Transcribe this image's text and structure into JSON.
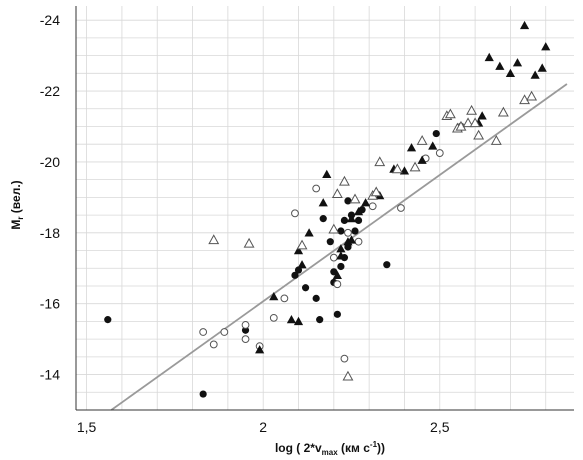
{
  "chart_data": {
    "type": "scatter",
    "title": "",
    "xlabel": "log ( 2*v",
    "xlabel_sub": "max",
    "xlabel_suffix": " (км с",
    "xlabel_sup": "-1",
    "xlabel_end": "))",
    "ylabel": "M",
    "ylabel_sub": "r",
    "ylabel_suffix": " (вел.)",
    "xlim": [
      1.47,
      2.88
    ],
    "ylim": [
      -13.0,
      -24.4
    ],
    "y_inverted": true,
    "grid": true,
    "x_ticks": [
      1.5,
      2,
      2.5
    ],
    "x_tick_labels": [
      "1,5",
      "2",
      "2,5"
    ],
    "y_ticks": [
      -14,
      -16,
      -18,
      -20,
      -22,
      -24
    ],
    "y_tick_labels": [
      "-14",
      "-16",
      "-18",
      "-20",
      "-22",
      "-24"
    ],
    "colors": {
      "marker": "#111111",
      "fit_line": "#9a9a9a",
      "grid": "#d8d8d8"
    },
    "fit_line": {
      "x": [
        1.57,
        2.86
      ],
      "y": [
        -13.0,
        -22.2
      ]
    },
    "series": [
      {
        "marker": "filled-circle",
        "points": [
          [
            1.56,
            -15.55
          ],
          [
            1.83,
            -13.45
          ],
          [
            1.95,
            -15.25
          ],
          [
            2.09,
            -16.8
          ],
          [
            2.1,
            -16.95
          ],
          [
            2.12,
            -16.45
          ],
          [
            2.15,
            -16.15
          ],
          [
            2.16,
            -15.55
          ],
          [
            2.17,
            -18.4
          ],
          [
            2.19,
            -17.75
          ],
          [
            2.2,
            -16.6
          ],
          [
            2.2,
            -16.9
          ],
          [
            2.21,
            -15.7
          ],
          [
            2.22,
            -17.05
          ],
          [
            2.22,
            -18.05
          ],
          [
            2.23,
            -18.35
          ],
          [
            2.23,
            -17.3
          ],
          [
            2.24,
            -17.6
          ],
          [
            2.24,
            -18.9
          ],
          [
            2.25,
            -18.5
          ],
          [
            2.26,
            -18.05
          ],
          [
            2.27,
            -18.35
          ],
          [
            2.28,
            -18.65
          ],
          [
            2.35,
            -17.1
          ],
          [
            2.49,
            -20.8
          ]
        ]
      },
      {
        "marker": "open-circle",
        "points": [
          [
            1.83,
            -15.2
          ],
          [
            1.86,
            -14.85
          ],
          [
            1.89,
            -15.2
          ],
          [
            1.95,
            -15.4
          ],
          [
            1.95,
            -15.0
          ],
          [
            1.99,
            -14.8
          ],
          [
            2.03,
            -15.6
          ],
          [
            2.06,
            -16.15
          ],
          [
            2.09,
            -18.55
          ],
          [
            2.15,
            -19.25
          ],
          [
            2.2,
            -17.3
          ],
          [
            2.21,
            -16.55
          ],
          [
            2.23,
            -14.45
          ],
          [
            2.24,
            -18.0
          ],
          [
            2.27,
            -17.75
          ],
          [
            2.31,
            -18.75
          ],
          [
            2.39,
            -18.7
          ],
          [
            2.46,
            -20.1
          ],
          [
            2.5,
            -20.25
          ],
          [
            2.56,
            -21.0
          ]
        ]
      },
      {
        "marker": "filled-triangle",
        "points": [
          [
            1.99,
            -14.7
          ],
          [
            2.03,
            -16.2
          ],
          [
            2.08,
            -15.55
          ],
          [
            2.1,
            -15.5
          ],
          [
            2.1,
            -17.5
          ],
          [
            2.11,
            -17.1
          ],
          [
            2.13,
            -18.0
          ],
          [
            2.17,
            -18.85
          ],
          [
            2.18,
            -19.65
          ],
          [
            2.21,
            -16.8
          ],
          [
            2.22,
            -17.35
          ],
          [
            2.22,
            -17.55
          ],
          [
            2.24,
            -17.75
          ],
          [
            2.25,
            -17.8
          ],
          [
            2.25,
            -18.4
          ],
          [
            2.27,
            -18.6
          ],
          [
            2.29,
            -18.85
          ],
          [
            2.33,
            -19.05
          ],
          [
            2.37,
            -19.8
          ],
          [
            2.4,
            -19.75
          ],
          [
            2.42,
            -20.4
          ],
          [
            2.45,
            -20.05
          ],
          [
            2.48,
            -20.45
          ],
          [
            2.61,
            -21.1
          ],
          [
            2.62,
            -21.3
          ],
          [
            2.64,
            -22.95
          ],
          [
            2.67,
            -22.7
          ],
          [
            2.7,
            -22.5
          ],
          [
            2.72,
            -22.8
          ],
          [
            2.74,
            -23.85
          ],
          [
            2.77,
            -22.45
          ],
          [
            2.79,
            -22.65
          ],
          [
            2.8,
            -23.25
          ]
        ]
      },
      {
        "marker": "open-triangle",
        "points": [
          [
            1.86,
            -17.8
          ],
          [
            1.96,
            -17.7
          ],
          [
            2.11,
            -17.65
          ],
          [
            2.2,
            -18.1
          ],
          [
            2.21,
            -19.1
          ],
          [
            2.23,
            -19.45
          ],
          [
            2.24,
            -13.95
          ],
          [
            2.26,
            -18.95
          ],
          [
            2.31,
            -19.05
          ],
          [
            2.32,
            -19.15
          ],
          [
            2.33,
            -20.0
          ],
          [
            2.38,
            -19.8
          ],
          [
            2.43,
            -19.85
          ],
          [
            2.45,
            -20.6
          ],
          [
            2.52,
            -21.3
          ],
          [
            2.53,
            -21.35
          ],
          [
            2.55,
            -20.95
          ],
          [
            2.56,
            -21.0
          ],
          [
            2.58,
            -21.1
          ],
          [
            2.59,
            -21.45
          ],
          [
            2.6,
            -21.1
          ],
          [
            2.61,
            -20.75
          ],
          [
            2.66,
            -20.6
          ],
          [
            2.68,
            -21.4
          ],
          [
            2.74,
            -21.75
          ],
          [
            2.76,
            -21.85
          ]
        ]
      }
    ]
  }
}
